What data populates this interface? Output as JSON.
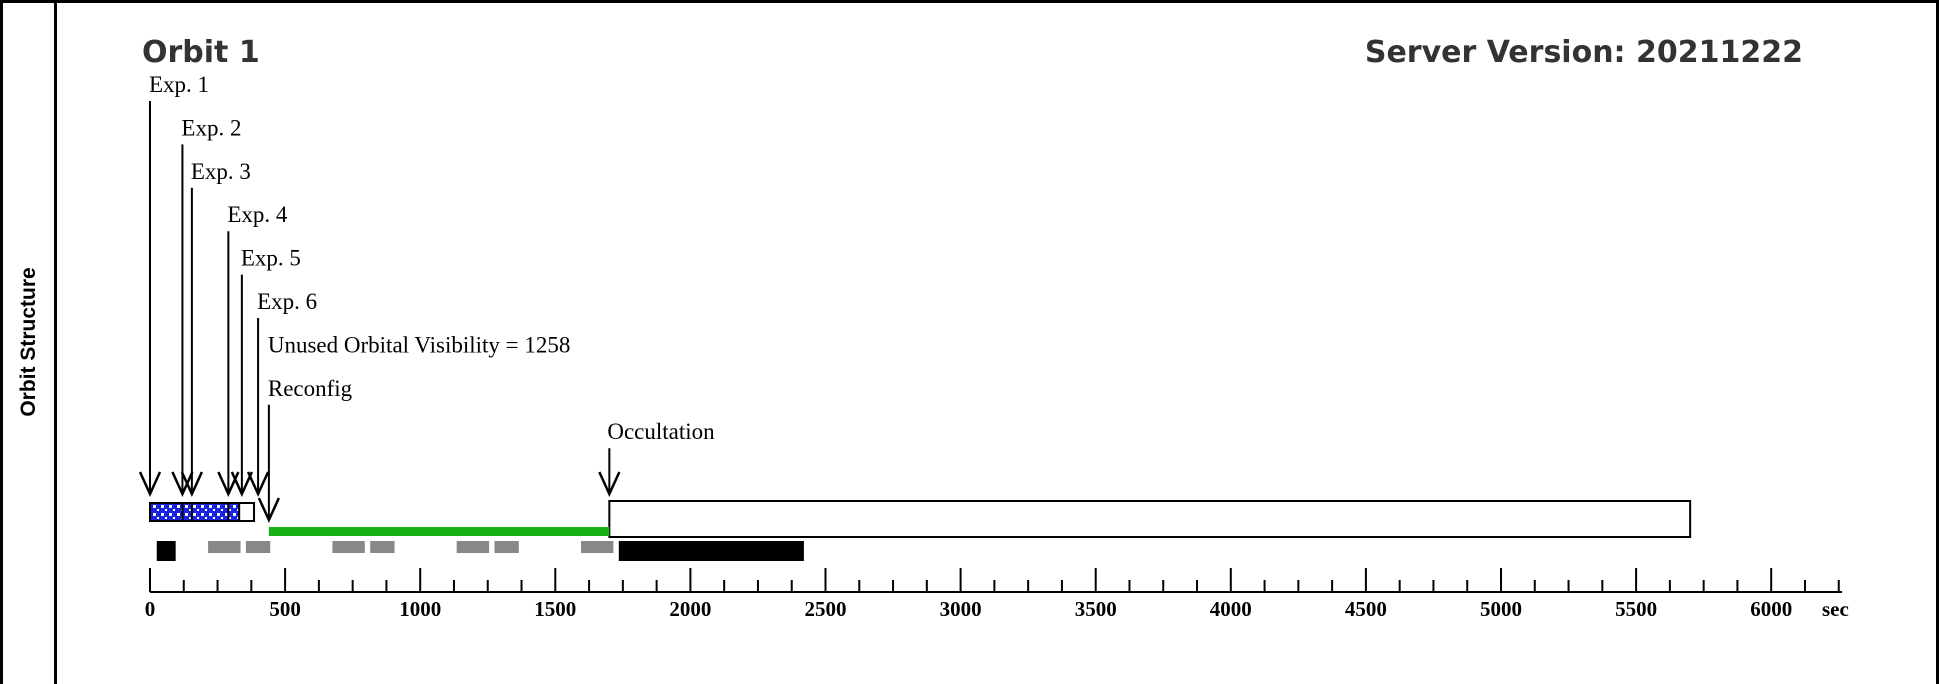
{
  "panel_label": "Orbit Structure",
  "orbit_title": "Orbit 1",
  "server_version": "Server Version: 20211222",
  "annotations": [
    {
      "label": "Exp. 1",
      "at": 0
    },
    {
      "label": "Exp. 2",
      "at": 120
    },
    {
      "label": "Exp. 3",
      "at": 155
    },
    {
      "label": "Exp. 4",
      "at": 290
    },
    {
      "label": "Exp. 5",
      "at": 340
    },
    {
      "label": "Exp. 6",
      "at": 400
    },
    {
      "label": "Unused Orbital Visibility = 1258",
      "at": 440,
      "no_arrowhead": true
    },
    {
      "label": "Reconfig",
      "at": 440
    },
    {
      "label": "Occultation",
      "at": 1700
    }
  ],
  "exposure_blocks": [
    {
      "start": 0,
      "end": 120,
      "fill": "dotted"
    },
    {
      "start": 120,
      "end": 155,
      "fill": "dotted"
    },
    {
      "start": 155,
      "end": 290,
      "fill": "dotted"
    },
    {
      "start": 290,
      "end": 330,
      "fill": "dotted"
    },
    {
      "start": 330,
      "end": 385,
      "fill": "outline"
    }
  ],
  "unused_visibility": {
    "start": 440,
    "end": 1700,
    "color": "#17b117"
  },
  "occultation_block": {
    "start": 1700,
    "end": 5700
  },
  "lower_bars": [
    {
      "start": 25,
      "end": 95,
      "color": "#000000"
    },
    {
      "start": 215,
      "end": 335,
      "color": "#888888"
    },
    {
      "start": 355,
      "end": 445,
      "color": "#888888"
    },
    {
      "start": 675,
      "end": 795,
      "color": "#888888"
    },
    {
      "start": 815,
      "end": 905,
      "color": "#888888"
    },
    {
      "start": 1135,
      "end": 1255,
      "color": "#888888"
    },
    {
      "start": 1275,
      "end": 1365,
      "color": "#888888"
    },
    {
      "start": 1595,
      "end": 1715,
      "color": "#888888"
    },
    {
      "start": 1735,
      "end": 2420,
      "color": "#000000"
    }
  ],
  "axis": {
    "min": 0,
    "max": 6250,
    "major_ticks": [
      0,
      500,
      1000,
      1500,
      2000,
      2500,
      3000,
      3500,
      4000,
      4500,
      5000,
      5500,
      6000
    ],
    "minor_step": 125,
    "unit": "sec"
  }
}
